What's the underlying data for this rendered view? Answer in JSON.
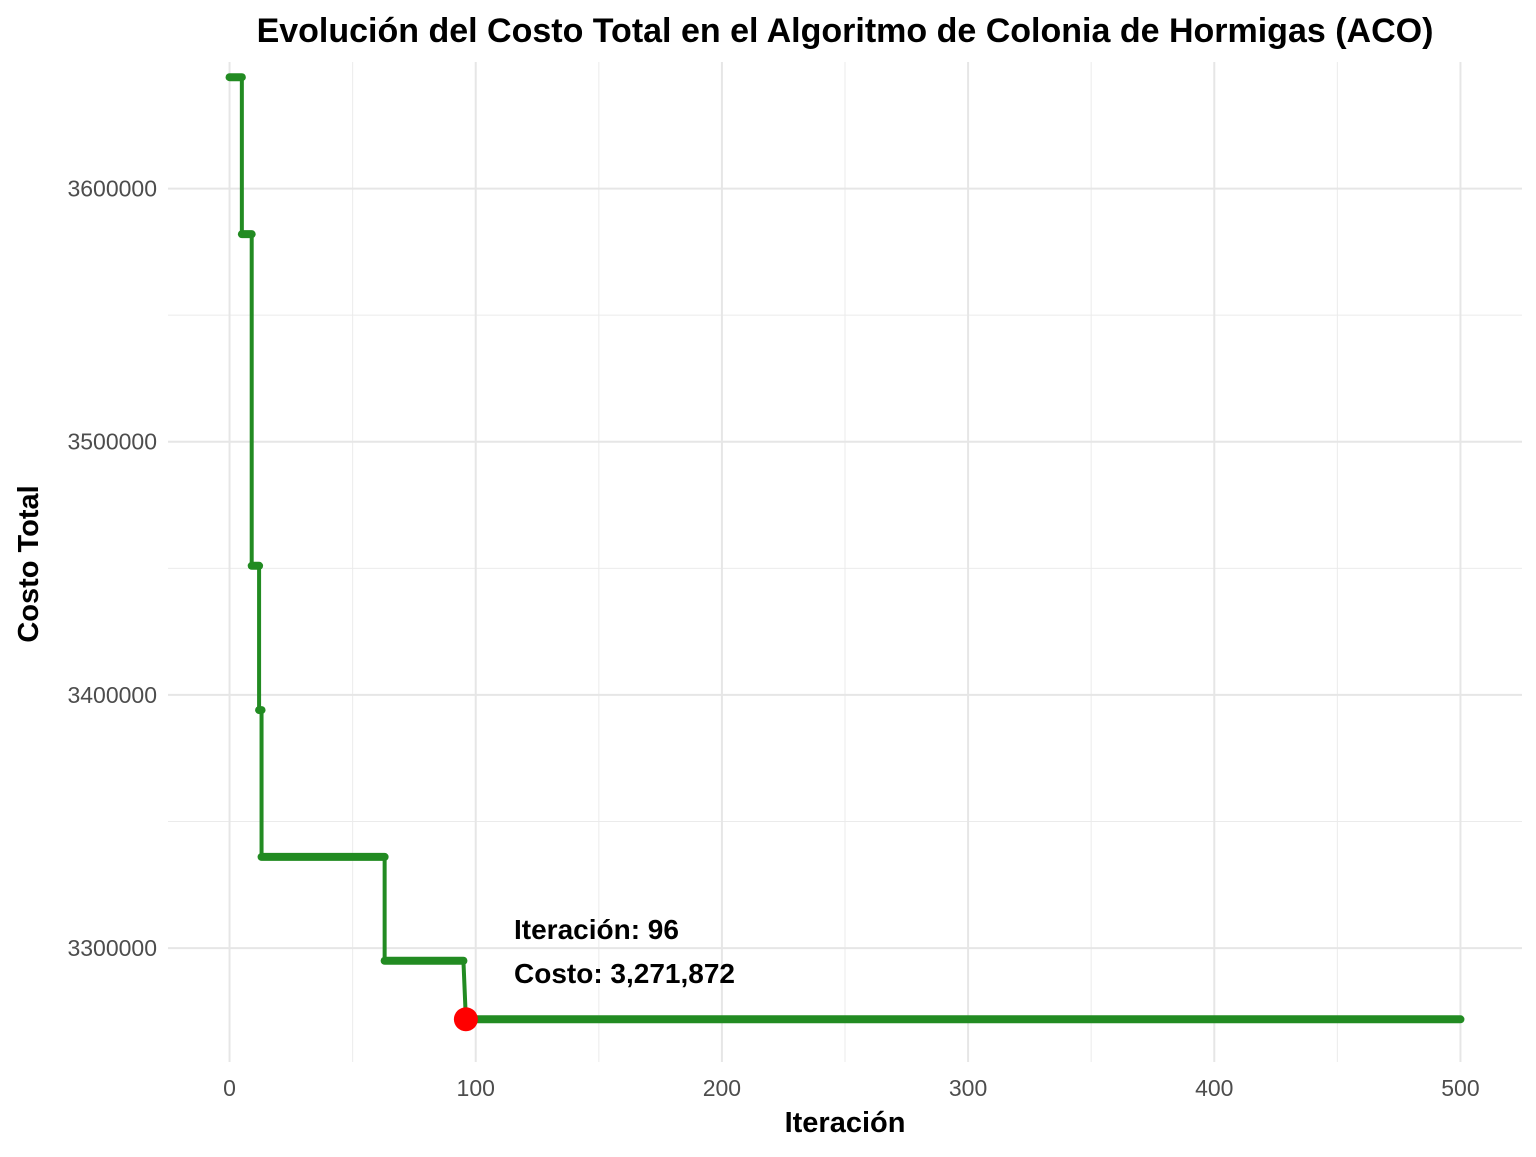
{
  "chart_data": {
    "type": "line",
    "title": "Evolución del Costo Total en el Algoritmo de Colonia de Hormigas (ACO)",
    "xlabel": "Iteración",
    "ylabel": "Costo Total",
    "xlim": [
      -25,
      525
    ],
    "ylim": [
      3255000,
      3650000
    ],
    "x_ticks": [
      0,
      100,
      200,
      300,
      400,
      500
    ],
    "x_tick_labels": [
      "0",
      "100",
      "200",
      "300",
      "400",
      "500"
    ],
    "y_ticks": [
      3300000,
      3400000,
      3500000,
      3600000
    ],
    "y_tick_labels": [
      "3300000",
      "3400000",
      "3500000",
      "3600000"
    ],
    "grid": true,
    "line_color": "#228B22",
    "highlight_color": "#FF0000",
    "series": [
      {
        "steps": [
          {
            "from": 0,
            "to": 5,
            "y": 3644000
          },
          {
            "from": 5,
            "to": 9,
            "y": 3582000
          },
          {
            "from": 9,
            "to": 12,
            "y": 3451000
          },
          {
            "from": 12,
            "to": 13,
            "y": 3394000
          },
          {
            "from": 13,
            "to": 63,
            "y": 3336000
          },
          {
            "from": 63,
            "to": 95,
            "y": 3295000
          },
          {
            "from": 96,
            "to": 500,
            "y": 3271872
          }
        ]
      }
    ],
    "highlight": {
      "x": 96,
      "y": 3271872
    },
    "annotations": [
      "Iteración: 96",
      "Costo: 3,271,872"
    ]
  }
}
